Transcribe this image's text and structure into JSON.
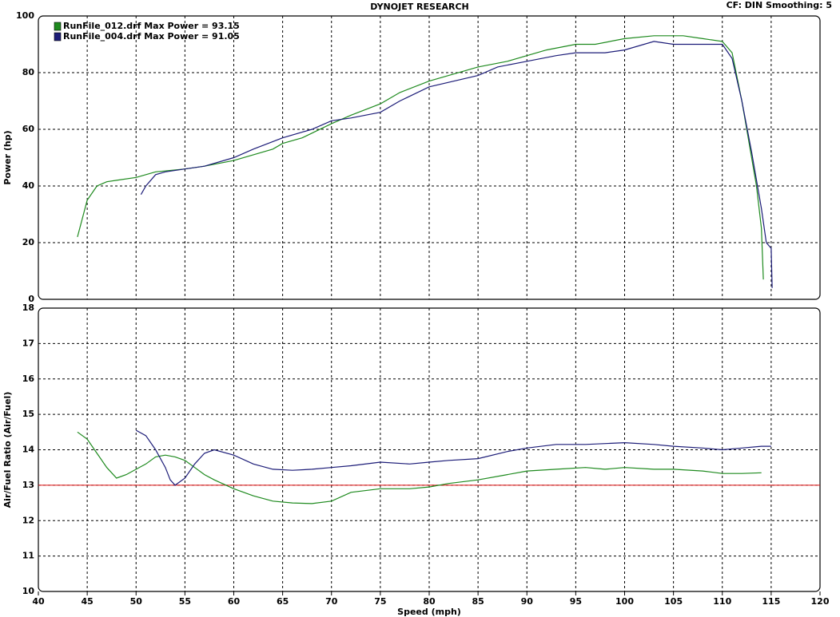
{
  "title": "DYNOJET RESEARCH",
  "settings_text": "CF: DIN  Smoothing: 5",
  "chart_data": [
    {
      "type": "line",
      "ylabel": "Power (hp)",
      "legend": "upper left",
      "grid": true,
      "xlim": [
        40,
        120
      ],
      "xticks": [
        40,
        45,
        50,
        55,
        60,
        65,
        70,
        75,
        80,
        85,
        90,
        95,
        100,
        105,
        110,
        115,
        120
      ],
      "ylim": [
        0,
        100
      ],
      "yticks": [
        0,
        20,
        40,
        60,
        80,
        100
      ],
      "series": [
        {
          "name": "RunFile_012.drf Max Power = 93.15",
          "color": "#1e8a1e",
          "x": [
            44,
            45,
            46,
            47,
            48,
            50,
            51,
            52,
            55,
            57,
            60,
            62,
            64,
            65,
            67,
            70,
            72,
            75,
            77,
            80,
            85,
            88,
            90,
            92,
            95,
            97,
            100,
            103,
            106,
            108,
            110,
            111,
            112,
            113,
            113.5,
            114,
            114.2
          ],
          "values": [
            22,
            35,
            40,
            41.5,
            42,
            43,
            44,
            45,
            46,
            47,
            49,
            51,
            53,
            55,
            57,
            62,
            65,
            69,
            73,
            77,
            82,
            84,
            86,
            88,
            90,
            90,
            92,
            93,
            93,
            92,
            91,
            87,
            70,
            50,
            40,
            25,
            7
          ]
        },
        {
          "name": "RunFile_004.drf Max Power = 91.05",
          "color": "#1c1c78",
          "x": [
            50.5,
            51,
            52,
            53,
            55,
            57,
            60,
            62,
            65,
            68,
            70,
            72,
            75,
            77,
            80,
            85,
            87,
            90,
            93,
            95,
            98,
            100,
            103,
            105,
            108,
            110,
            111,
            112,
            113,
            114,
            114.5,
            115,
            115.1
          ],
          "values": [
            37,
            40,
            44,
            45,
            46,
            47,
            50,
            53,
            57,
            60,
            63,
            64,
            66,
            70,
            75,
            79,
            82,
            84,
            86,
            87,
            87,
            88,
            91,
            90,
            90,
            90,
            85,
            70,
            52,
            32,
            20,
            18,
            4
          ]
        }
      ]
    },
    {
      "type": "line",
      "ylabel": "Air/Fuel Ratio (Air/Fuel)",
      "xlabel": "Speed (mph)",
      "grid": true,
      "xlim": [
        40,
        120
      ],
      "xticks": [
        40,
        45,
        50,
        55,
        60,
        65,
        70,
        75,
        80,
        85,
        90,
        95,
        100,
        105,
        110,
        115,
        120
      ],
      "ylim": [
        10,
        18
      ],
      "yticks": [
        10,
        11,
        12,
        13,
        14,
        15,
        16,
        17,
        18
      ],
      "reference_line": {
        "value": 13,
        "color": "#e01010"
      },
      "series": [
        {
          "color": "#1e8a1e",
          "x": [
            44,
            45,
            46,
            47,
            48,
            49,
            50,
            51,
            52,
            53,
            54,
            55,
            56,
            57,
            58,
            60,
            62,
            64,
            66,
            68,
            70,
            72,
            75,
            78,
            80,
            82,
            85,
            88,
            90,
            93,
            96,
            98,
            100,
            103,
            105,
            108,
            110,
            112,
            114
          ],
          "values": [
            14.5,
            14.3,
            13.9,
            13.5,
            13.2,
            13.3,
            13.45,
            13.6,
            13.8,
            13.85,
            13.8,
            13.7,
            13.5,
            13.3,
            13.15,
            12.9,
            12.7,
            12.55,
            12.5,
            12.48,
            12.55,
            12.8,
            12.9,
            12.9,
            12.95,
            13.05,
            13.15,
            13.3,
            13.4,
            13.45,
            13.5,
            13.45,
            13.5,
            13.45,
            13.45,
            13.4,
            13.33,
            13.33,
            13.35
          ]
        },
        {
          "color": "#1c1c78",
          "x": [
            50,
            51,
            52,
            53,
            53.5,
            54,
            55,
            56,
            57,
            58,
            60,
            62,
            64,
            66,
            68,
            70,
            72,
            75,
            78,
            80,
            82,
            85,
            88,
            90,
            93,
            96,
            100,
            103,
            105,
            108,
            110,
            112,
            114,
            115
          ],
          "values": [
            14.55,
            14.4,
            14.0,
            13.5,
            13.15,
            13.0,
            13.2,
            13.6,
            13.9,
            14.0,
            13.85,
            13.6,
            13.45,
            13.42,
            13.45,
            13.5,
            13.55,
            13.65,
            13.6,
            13.65,
            13.7,
            13.75,
            13.95,
            14.05,
            14.15,
            14.15,
            14.2,
            14.15,
            14.1,
            14.05,
            14.0,
            14.05,
            14.1,
            14.1
          ]
        }
      ]
    }
  ]
}
